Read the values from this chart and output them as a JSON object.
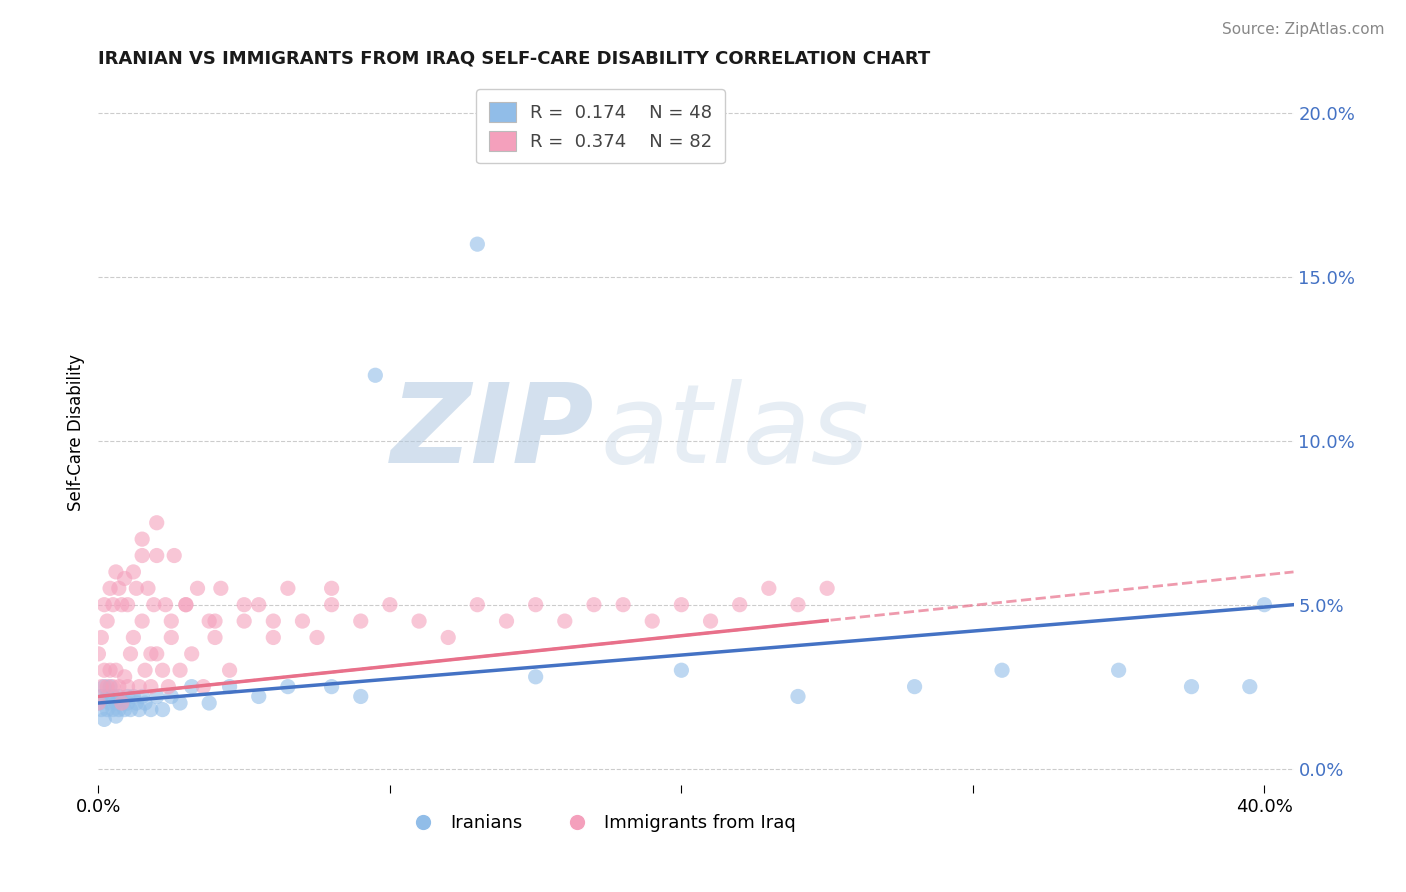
{
  "title": "IRANIAN VS IMMIGRANTS FROM IRAQ SELF-CARE DISABILITY CORRELATION CHART",
  "source": "Source: ZipAtlas.com",
  "ylabel": "Self-Care Disability",
  "x_min": 0.0,
  "x_max": 0.41,
  "y_min": -0.005,
  "y_max": 0.21,
  "yticks": [
    0.0,
    0.05,
    0.1,
    0.15,
    0.2
  ],
  "ytick_labels": [
    "0.0%",
    "5.0%",
    "10.0%",
    "15.0%",
    "20.0%"
  ],
  "xtick_left": "0.0%",
  "xtick_right": "40.0%",
  "legend1_text": "R =  0.174    N = 48",
  "legend2_text": "R =  0.374    N = 82",
  "legend1_label": "Iranians",
  "legend2_label": "Immigrants from Iraq",
  "color_iranian": "#91bde8",
  "color_iraq": "#f4a0bc",
  "color_trendline_iranian": "#4472c4",
  "color_trendline_iraq": "#e8708a",
  "watermark_text": "ZIPatlas",
  "watermark_color": "#ccdaec",
  "background_color": "#ffffff",
  "grid_color": "#cccccc",
  "iran_x": [
    0.0,
    0.001,
    0.001,
    0.002,
    0.002,
    0.003,
    0.003,
    0.004,
    0.004,
    0.005,
    0.005,
    0.006,
    0.006,
    0.007,
    0.007,
    0.008,
    0.009,
    0.01,
    0.01,
    0.011,
    0.012,
    0.013,
    0.014,
    0.015,
    0.016,
    0.018,
    0.02,
    0.022,
    0.025,
    0.028,
    0.032,
    0.038,
    0.045,
    0.055,
    0.065,
    0.08,
    0.09,
    0.095,
    0.13,
    0.15,
    0.2,
    0.24,
    0.28,
    0.31,
    0.35,
    0.375,
    0.395,
    0.4
  ],
  "iran_y": [
    0.02,
    0.022,
    0.018,
    0.025,
    0.015,
    0.022,
    0.018,
    0.02,
    0.025,
    0.018,
    0.022,
    0.02,
    0.016,
    0.022,
    0.018,
    0.02,
    0.018,
    0.022,
    0.02,
    0.018,
    0.022,
    0.02,
    0.018,
    0.022,
    0.02,
    0.018,
    0.022,
    0.018,
    0.022,
    0.02,
    0.025,
    0.02,
    0.025,
    0.022,
    0.025,
    0.025,
    0.022,
    0.12,
    0.16,
    0.028,
    0.03,
    0.022,
    0.025,
    0.03,
    0.03,
    0.025,
    0.025,
    0.05
  ],
  "iraq_x": [
    0.0,
    0.0,
    0.001,
    0.001,
    0.002,
    0.002,
    0.003,
    0.003,
    0.004,
    0.004,
    0.005,
    0.005,
    0.006,
    0.006,
    0.007,
    0.007,
    0.008,
    0.008,
    0.009,
    0.009,
    0.01,
    0.01,
    0.011,
    0.012,
    0.013,
    0.014,
    0.015,
    0.015,
    0.016,
    0.017,
    0.018,
    0.019,
    0.02,
    0.02,
    0.022,
    0.023,
    0.024,
    0.025,
    0.026,
    0.028,
    0.03,
    0.032,
    0.034,
    0.036,
    0.038,
    0.04,
    0.042,
    0.045,
    0.05,
    0.055,
    0.06,
    0.065,
    0.07,
    0.075,
    0.08,
    0.09,
    0.1,
    0.11,
    0.12,
    0.13,
    0.14,
    0.15,
    0.16,
    0.17,
    0.18,
    0.19,
    0.2,
    0.21,
    0.22,
    0.23,
    0.24,
    0.25,
    0.012,
    0.018,
    0.025,
    0.03,
    0.04,
    0.05,
    0.06,
    0.08,
    0.02,
    0.015
  ],
  "iraq_y": [
    0.02,
    0.035,
    0.025,
    0.04,
    0.03,
    0.05,
    0.025,
    0.045,
    0.03,
    0.055,
    0.025,
    0.05,
    0.03,
    0.06,
    0.025,
    0.055,
    0.02,
    0.05,
    0.028,
    0.058,
    0.025,
    0.05,
    0.035,
    0.04,
    0.055,
    0.025,
    0.045,
    0.065,
    0.03,
    0.055,
    0.025,
    0.05,
    0.035,
    0.065,
    0.03,
    0.05,
    0.025,
    0.045,
    0.065,
    0.03,
    0.05,
    0.035,
    0.055,
    0.025,
    0.045,
    0.04,
    0.055,
    0.03,
    0.045,
    0.05,
    0.04,
    0.055,
    0.045,
    0.04,
    0.055,
    0.045,
    0.05,
    0.045,
    0.04,
    0.05,
    0.045,
    0.05,
    0.045,
    0.05,
    0.05,
    0.045,
    0.05,
    0.045,
    0.05,
    0.055,
    0.05,
    0.055,
    0.06,
    0.035,
    0.04,
    0.05,
    0.045,
    0.05,
    0.045,
    0.05,
    0.075,
    0.07
  ]
}
